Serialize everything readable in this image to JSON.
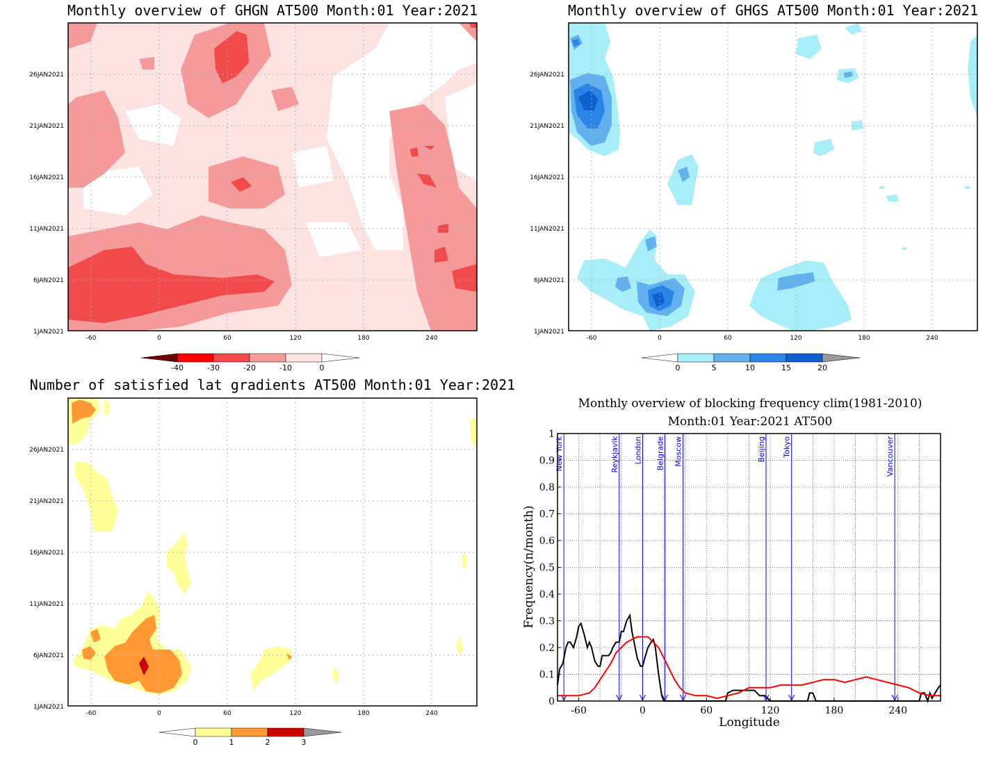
{
  "panels": {
    "ghgn": {
      "title": "Monthly overview of GHGN AT500 Month:01 Year:2021",
      "colorbar": {
        "labels": [
          "-40",
          "-30",
          "-20",
          "-10",
          "0"
        ],
        "colors": [
          "#6b0000",
          "#ff0000",
          "#f04a4a",
          "#f59a9a",
          "#fde2e2",
          "#ffffff"
        ]
      }
    },
    "ghgs": {
      "title": "Monthly overview of GHGS AT500 Month:01 Year:2021",
      "colorbar": {
        "labels": [
          "0",
          "5",
          "10",
          "15",
          "20"
        ],
        "colors": [
          "#ffffff",
          "#a8eef8",
          "#62b0ee",
          "#2a84e6",
          "#0f5fcf",
          "#999999"
        ]
      }
    },
    "sat": {
      "title": "Number of satisfied lat gradients AT500 Month:01 Year:2021",
      "colorbar": {
        "labels": [
          "0",
          "1",
          "2",
          "3"
        ],
        "colors": [
          "#ffffff",
          "#ffff99",
          "#ff9933",
          "#cc0000",
          "#999999"
        ]
      }
    }
  },
  "maps_axes": {
    "x_ticks": [
      "-60",
      "0",
      "60",
      "120",
      "180",
      "240"
    ],
    "y_ticks": [
      "1JAN2021",
      "6JAN2021",
      "11JAN2021",
      "16JAN2021",
      "21JAN2021",
      "26JAN2021"
    ]
  },
  "chart_data": {
    "type": "line",
    "title": "Monthly overview of blocking frequency clim(1981-2010)",
    "subtitle": "Month:01 Year:2021  AT500",
    "xlabel": "Longitude",
    "ylabel": "Frequency(n/month)",
    "xlim": [
      -80,
      280
    ],
    "ylim": [
      0,
      1
    ],
    "x_ticks": [
      "-60",
      "0",
      "60",
      "120",
      "180",
      "240"
    ],
    "y_ticks": [
      "0",
      "0.1",
      "0.2",
      "0.3",
      "0.4",
      "0.5",
      "0.6",
      "0.7",
      "0.8",
      "0.9",
      "1"
    ],
    "grid": true,
    "series": [
      {
        "color": "#000000",
        "x": [
          -80,
          -78,
          -75,
          -72,
          -70,
          -68,
          -65,
          -62,
          -60,
          -58,
          -55,
          -52,
          -50,
          -48,
          -45,
          -42,
          -40,
          -38,
          -35,
          -32,
          -30,
          -28,
          -25,
          -22,
          -20,
          -18,
          -15,
          -12,
          -10,
          -8,
          -5,
          -2,
          0,
          2,
          5,
          8,
          10,
          12,
          15,
          18,
          20,
          22,
          25,
          28,
          30,
          35,
          40,
          50,
          60,
          70,
          78,
          80,
          85,
          90,
          95,
          100,
          105,
          110,
          115,
          120,
          125,
          130,
          135,
          140,
          145,
          150,
          155,
          157,
          160,
          163,
          165,
          180,
          200,
          220,
          240,
          260,
          262,
          265,
          268,
          270,
          272,
          275,
          278,
          280
        ],
        "y": [
          0.06,
          0.12,
          0.14,
          0.2,
          0.22,
          0.22,
          0.2,
          0.24,
          0.28,
          0.29,
          0.25,
          0.2,
          0.22,
          0.2,
          0.15,
          0.13,
          0.13,
          0.17,
          0.17,
          0.17,
          0.18,
          0.2,
          0.22,
          0.22,
          0.26,
          0.26,
          0.3,
          0.32,
          0.26,
          0.22,
          0.16,
          0.13,
          0.13,
          0.16,
          0.2,
          0.22,
          0.23,
          0.2,
          0.1,
          0.02,
          0.0,
          0.0,
          0.0,
          0.0,
          0.0,
          0.0,
          0.0,
          0.0,
          0.0,
          0.0,
          0.0,
          0.03,
          0.04,
          0.04,
          0.04,
          0.04,
          0.04,
          0.02,
          0.02,
          0.0,
          0.0,
          0.0,
          0.0,
          0.0,
          0.0,
          0.0,
          0.0,
          0.03,
          0.03,
          0.0,
          0.0,
          0.0,
          0.0,
          0.0,
          0.0,
          0.0,
          0.03,
          0.03,
          0.0,
          0.03,
          0.01,
          0.03,
          0.05,
          0.06
        ]
      },
      {
        "color": "#ff0000",
        "x": [
          -80,
          -70,
          -60,
          -50,
          -45,
          -40,
          -35,
          -30,
          -25,
          -20,
          -15,
          -10,
          -5,
          0,
          5,
          10,
          15,
          20,
          25,
          30,
          35,
          40,
          50,
          60,
          70,
          80,
          90,
          100,
          110,
          120,
          130,
          140,
          150,
          160,
          170,
          180,
          190,
          200,
          210,
          220,
          230,
          240,
          250,
          260,
          270,
          280
        ],
        "y": [
          0.02,
          0.02,
          0.02,
          0.03,
          0.05,
          0.08,
          0.11,
          0.14,
          0.18,
          0.2,
          0.22,
          0.23,
          0.24,
          0.24,
          0.24,
          0.22,
          0.2,
          0.16,
          0.12,
          0.08,
          0.05,
          0.03,
          0.02,
          0.02,
          0.01,
          0.02,
          0.03,
          0.05,
          0.05,
          0.05,
          0.06,
          0.06,
          0.06,
          0.07,
          0.08,
          0.08,
          0.07,
          0.08,
          0.09,
          0.08,
          0.07,
          0.06,
          0.05,
          0.03,
          0.02,
          0.02
        ]
      }
    ],
    "cities": [
      {
        "name": "New York",
        "lon": -74
      },
      {
        "name": "Reykjavik",
        "lon": -22
      },
      {
        "name": "London",
        "lon": 0
      },
      {
        "name": "Belgrade",
        "lon": 21
      },
      {
        "name": "Moscow",
        "lon": 38
      },
      {
        "name": "Beijing",
        "lon": 116
      },
      {
        "name": "Tokyo",
        "lon": 140
      },
      {
        "name": "Vancouver",
        "lon": 237
      }
    ]
  }
}
